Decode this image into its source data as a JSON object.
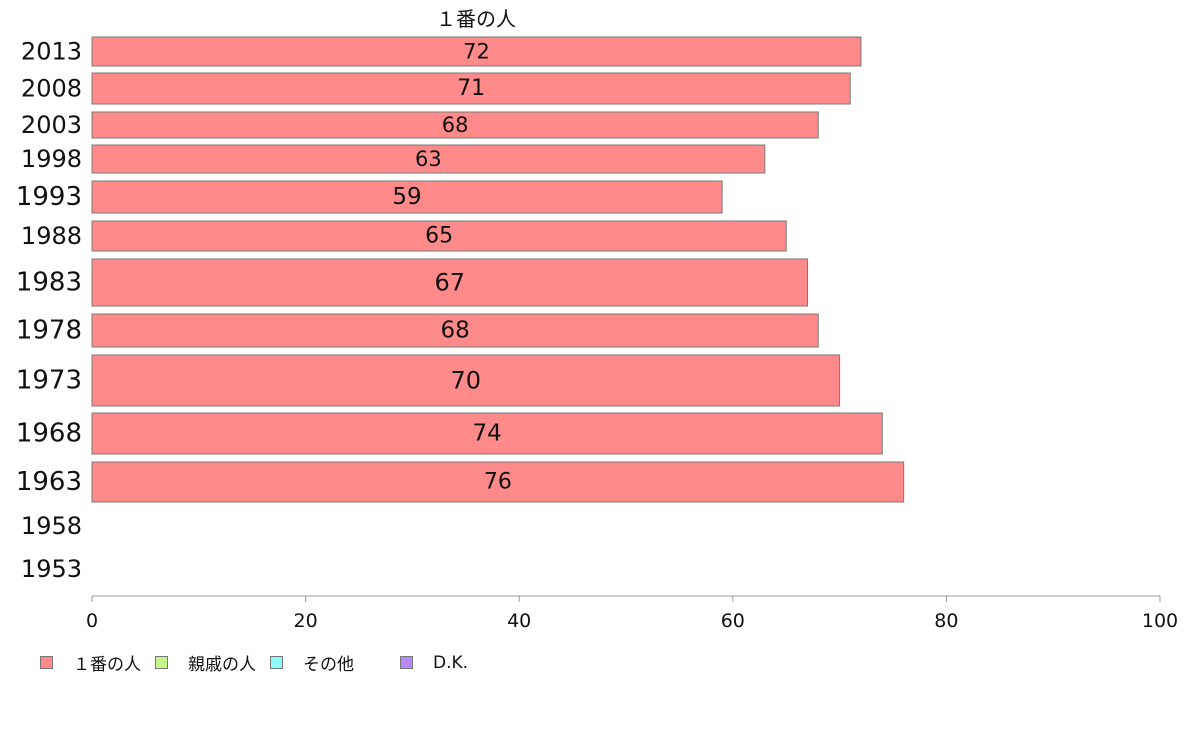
{
  "chart_data": {
    "type": "bar",
    "orientation": "horizontal",
    "title": "",
    "xlim": [
      0,
      100
    ],
    "x_ticks": [
      "0",
      "20",
      "40",
      "60",
      "80",
      "100"
    ],
    "categories": [
      "2013",
      "2008",
      "2003",
      "1998",
      "1993",
      "1988",
      "1983",
      "1978",
      "1973",
      "1968",
      "1963",
      "1958",
      "1953"
    ],
    "series": [
      {
        "name": "１番の人",
        "color": "#ff8a8a",
        "values": [
          72,
          71,
          68,
          63,
          59,
          65,
          67,
          68,
          70,
          74,
          76,
          null,
          null
        ]
      },
      {
        "name": "親戚の人",
        "color": "#c4f58a",
        "values": [
          null,
          null,
          null,
          null,
          null,
          null,
          null,
          null,
          null,
          null,
          null,
          null,
          null
        ]
      },
      {
        "name": "その他",
        "color": "#8afafa",
        "values": [
          null,
          null,
          null,
          null,
          null,
          null,
          null,
          null,
          null,
          null,
          null,
          null,
          null
        ]
      },
      {
        "name": "D.K.",
        "color": "#b58af5",
        "values": [
          null,
          null,
          null,
          null,
          null,
          null,
          null,
          null,
          null,
          null,
          null,
          null,
          null
        ]
      }
    ],
    "data_labels": [
      "72",
      "71",
      "68",
      "63",
      "59",
      "65",
      "67",
      "68",
      "70",
      "74",
      "76",
      "",
      ""
    ],
    "series_label_top": "１番の人",
    "grid": false,
    "legend_position": "bottom-left"
  }
}
